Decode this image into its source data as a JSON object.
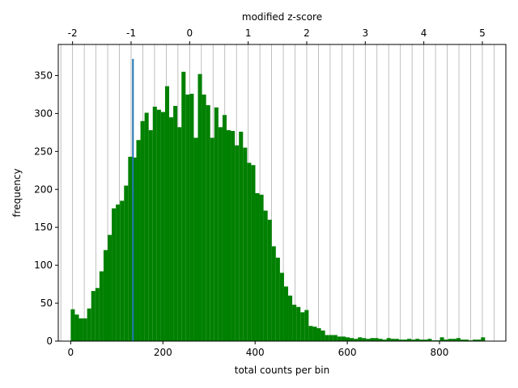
{
  "chart_data": {
    "type": "bar",
    "title": "",
    "xlabel": "total counts per bin",
    "ylabel": "frequency",
    "top_xlabel": "modified z-score",
    "xlim": [
      -27,
      944
    ],
    "ylim": [
      0,
      391
    ],
    "x_ticks": [
      0,
      200,
      400,
      600,
      800
    ],
    "y_ticks": [
      0,
      50,
      100,
      150,
      200,
      250,
      300,
      350
    ],
    "top_ticks": [
      {
        "value": -2,
        "label": "-2"
      },
      {
        "value": -1,
        "label": "-1"
      },
      {
        "value": 0,
        "label": "0"
      },
      {
        "value": 1,
        "label": "1"
      },
      {
        "value": 2,
        "label": "2"
      },
      {
        "value": 3,
        "label": "3"
      },
      {
        "value": 4,
        "label": "4"
      },
      {
        "value": 5,
        "label": "5"
      }
    ],
    "grid": "vertical lines at modified z-score steps of 0.2",
    "z_transform": {
      "center_count": 258,
      "count_per_unit_z": 127
    },
    "bar_color": "#008000",
    "bin_width": 8.9,
    "bins": [
      {
        "x": 0,
        "value": 42
      },
      {
        "x": 8.9,
        "value": 35
      },
      {
        "x": 17.8,
        "value": 30
      },
      {
        "x": 26.7,
        "value": 30
      },
      {
        "x": 35.6,
        "value": 43
      },
      {
        "x": 44.5,
        "value": 66
      },
      {
        "x": 53.4,
        "value": 70
      },
      {
        "x": 62.3,
        "value": 92
      },
      {
        "x": 71.2,
        "value": 120
      },
      {
        "x": 80.1,
        "value": 140
      },
      {
        "x": 89,
        "value": 175
      },
      {
        "x": 97.9,
        "value": 180
      },
      {
        "x": 106.8,
        "value": 185
      },
      {
        "x": 115.7,
        "value": 205
      },
      {
        "x": 124.6,
        "value": 243
      },
      {
        "x": 133.5,
        "value": 242
      },
      {
        "x": 142.4,
        "value": 265
      },
      {
        "x": 151.3,
        "value": 290
      },
      {
        "x": 160.2,
        "value": 301
      },
      {
        "x": 169.1,
        "value": 278
      },
      {
        "x": 178,
        "value": 309
      },
      {
        "x": 186.9,
        "value": 305
      },
      {
        "x": 195.8,
        "value": 302
      },
      {
        "x": 204.7,
        "value": 336
      },
      {
        "x": 213.6,
        "value": 295
      },
      {
        "x": 222.5,
        "value": 310
      },
      {
        "x": 231.4,
        "value": 282
      },
      {
        "x": 240.3,
        "value": 355
      },
      {
        "x": 249.2,
        "value": 325
      },
      {
        "x": 258.1,
        "value": 326
      },
      {
        "x": 267,
        "value": 268
      },
      {
        "x": 275.9,
        "value": 352
      },
      {
        "x": 284.8,
        "value": 325
      },
      {
        "x": 293.7,
        "value": 311
      },
      {
        "x": 302.6,
        "value": 268
      },
      {
        "x": 311.5,
        "value": 308
      },
      {
        "x": 320.4,
        "value": 282
      },
      {
        "x": 329.3,
        "value": 298
      },
      {
        "x": 338.2,
        "value": 278
      },
      {
        "x": 347.1,
        "value": 277
      },
      {
        "x": 356,
        "value": 258
      },
      {
        "x": 364.9,
        "value": 276
      },
      {
        "x": 373.8,
        "value": 255
      },
      {
        "x": 382.7,
        "value": 235
      },
      {
        "x": 391.6,
        "value": 232
      },
      {
        "x": 400.5,
        "value": 195
      },
      {
        "x": 409.4,
        "value": 193
      },
      {
        "x": 418.3,
        "value": 172
      },
      {
        "x": 427.2,
        "value": 160
      },
      {
        "x": 436.1,
        "value": 125
      },
      {
        "x": 445,
        "value": 110
      },
      {
        "x": 453.9,
        "value": 90
      },
      {
        "x": 462.8,
        "value": 72
      },
      {
        "x": 471.7,
        "value": 60
      },
      {
        "x": 480.6,
        "value": 48
      },
      {
        "x": 489.5,
        "value": 45
      },
      {
        "x": 498.4,
        "value": 38
      },
      {
        "x": 507.3,
        "value": 41
      },
      {
        "x": 516.2,
        "value": 20
      },
      {
        "x": 525.1,
        "value": 19
      },
      {
        "x": 534,
        "value": 17
      },
      {
        "x": 542.9,
        "value": 14
      },
      {
        "x": 551.8,
        "value": 8
      },
      {
        "x": 560.7,
        "value": 8
      },
      {
        "x": 569.6,
        "value": 8
      },
      {
        "x": 578.5,
        "value": 6
      },
      {
        "x": 587.4,
        "value": 6
      },
      {
        "x": 596.3,
        "value": 5
      },
      {
        "x": 605.2,
        "value": 4
      },
      {
        "x": 614.1,
        "value": 3
      },
      {
        "x": 623,
        "value": 5
      },
      {
        "x": 631.9,
        "value": 4
      },
      {
        "x": 640.8,
        "value": 3
      },
      {
        "x": 649.7,
        "value": 4
      },
      {
        "x": 658.6,
        "value": 4
      },
      {
        "x": 667.5,
        "value": 3
      },
      {
        "x": 676.4,
        "value": 2
      },
      {
        "x": 685.3,
        "value": 4
      },
      {
        "x": 694.2,
        "value": 3
      },
      {
        "x": 703.1,
        "value": 3
      },
      {
        "x": 712,
        "value": 2
      },
      {
        "x": 720.9,
        "value": 2
      },
      {
        "x": 729.8,
        "value": 3
      },
      {
        "x": 738.7,
        "value": 2
      },
      {
        "x": 747.6,
        "value": 3
      },
      {
        "x": 756.5,
        "value": 2
      },
      {
        "x": 765.4,
        "value": 2
      },
      {
        "x": 774.3,
        "value": 3
      },
      {
        "x": 783.2,
        "value": 1
      },
      {
        "x": 792.1,
        "value": 1
      },
      {
        "x": 801,
        "value": 5
      },
      {
        "x": 809.9,
        "value": 2
      },
      {
        "x": 818.8,
        "value": 3
      },
      {
        "x": 827.7,
        "value": 3
      },
      {
        "x": 836.6,
        "value": 4
      },
      {
        "x": 845.5,
        "value": 2
      },
      {
        "x": 854.4,
        "value": 2
      },
      {
        "x": 863.3,
        "value": 1
      },
      {
        "x": 872.2,
        "value": 2
      },
      {
        "x": 881.1,
        "value": 2
      },
      {
        "x": 890,
        "value": 5
      }
    ],
    "marker_line": {
      "x": 135,
      "y_max": 372,
      "color": "#1f77b4"
    }
  }
}
